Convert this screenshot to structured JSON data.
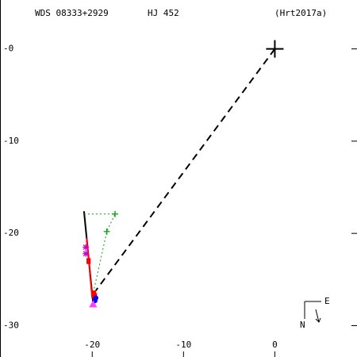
{
  "chart_data": {
    "type": "scatter",
    "title": "WDS 08333+2929",
    "subtitle": "HJ  452",
    "reference": "(Hrt2017a)",
    "compass": {
      "east": "E",
      "north": "N"
    },
    "xlim": [
      -30.1,
      9.0
    ],
    "ylim": [
      -33.4,
      5.3
    ],
    "xticks": [
      -20,
      -10,
      0
    ],
    "yticks": [
      {
        "value": 0,
        "label": "-0"
      },
      -10,
      -20,
      -30
    ],
    "series": [
      {
        "x": [
          0,
          -19.6
        ],
        "y": [
          0,
          -26.2
        ],
        "color": "#000000",
        "style": "dashed"
      },
      {
        "x": [
          -20.9,
          -19.9
        ],
        "y": [
          -17.6,
          -27.6
        ],
        "color": "#000000",
        "style": "solid"
      },
      {
        "x": [
          -20.6,
          -20.0
        ],
        "y": [
          -20.5,
          -27.0
        ],
        "color": "#ff0000",
        "style": "solid"
      },
      {
        "x": [
          -20.9,
          -17.5,
          -18.4,
          -19.9
        ],
        "y": [
          -17.9,
          -17.9,
          -19.8,
          -26.5
        ],
        "color": "#00a000",
        "style": "dotted"
      },
      {
        "x": [
          -17.5,
          -18.4
        ],
        "y": [
          -17.9,
          -19.8
        ],
        "color": "#00a000",
        "marker": "plus"
      },
      {
        "x": [
          -20.7,
          -20.7
        ],
        "y": [
          -21.5,
          -22.2
        ],
        "color": "#d000d0",
        "marker": "asterisk"
      },
      {
        "x": [
          -20.4,
          -19.8,
          -19.7
        ],
        "y": [
          -23.0,
          -26.5,
          -26.8
        ],
        "color": "#ff0000",
        "marker": "box"
      },
      {
        "x": [
          -19.6,
          -19.7
        ],
        "y": [
          -27.0,
          -27.3
        ],
        "color": "#0000ff",
        "marker": "dot"
      },
      {
        "x": [
          -19.9
        ],
        "y": [
          -27.7
        ],
        "color": "#ff40ff",
        "marker": "triangle"
      },
      {
        "x": [
          0
        ],
        "y": [
          0
        ],
        "color": "#000000",
        "marker": "bigplus"
      }
    ]
  }
}
